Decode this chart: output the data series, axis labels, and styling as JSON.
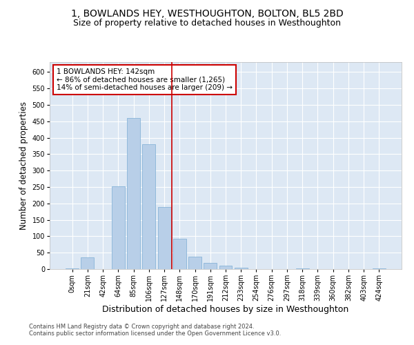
{
  "title": "1, BOWLANDS HEY, WESTHOUGHTON, BOLTON, BL5 2BD",
  "subtitle": "Size of property relative to detached houses in Westhoughton",
  "xlabel": "Distribution of detached houses by size in Westhoughton",
  "ylabel": "Number of detached properties",
  "categories": [
    "0sqm",
    "21sqm",
    "42sqm",
    "64sqm",
    "85sqm",
    "106sqm",
    "127sqm",
    "148sqm",
    "170sqm",
    "191sqm",
    "212sqm",
    "233sqm",
    "254sqm",
    "276sqm",
    "297sqm",
    "318sqm",
    "339sqm",
    "360sqm",
    "382sqm",
    "403sqm",
    "424sqm"
  ],
  "values": [
    3,
    36,
    0,
    252,
    460,
    380,
    190,
    93,
    38,
    18,
    11,
    4,
    0,
    0,
    0,
    3,
    0,
    0,
    0,
    0,
    2
  ],
  "bar_color": "#b8cfe8",
  "bar_edge_color": "#7aadd4",
  "vline_x": 6.5,
  "vline_color": "#cc0000",
  "annotation_text": "1 BOWLANDS HEY: 142sqm\n← 86% of detached houses are smaller (1,265)\n14% of semi-detached houses are larger (209) →",
  "annotation_box_color": "#ffffff",
  "annotation_box_edge": "#cc0000",
  "ylim": [
    0,
    630
  ],
  "yticks": [
    0,
    50,
    100,
    150,
    200,
    250,
    300,
    350,
    400,
    450,
    500,
    550,
    600
  ],
  "background_color": "#dde8f4",
  "footer_line1": "Contains HM Land Registry data © Crown copyright and database right 2024.",
  "footer_line2": "Contains public sector information licensed under the Open Government Licence v3.0.",
  "title_fontsize": 10,
  "subtitle_fontsize": 9,
  "tick_fontsize": 7,
  "ylabel_fontsize": 8.5,
  "xlabel_fontsize": 9,
  "annotation_fontsize": 7.5,
  "footer_fontsize": 6
}
